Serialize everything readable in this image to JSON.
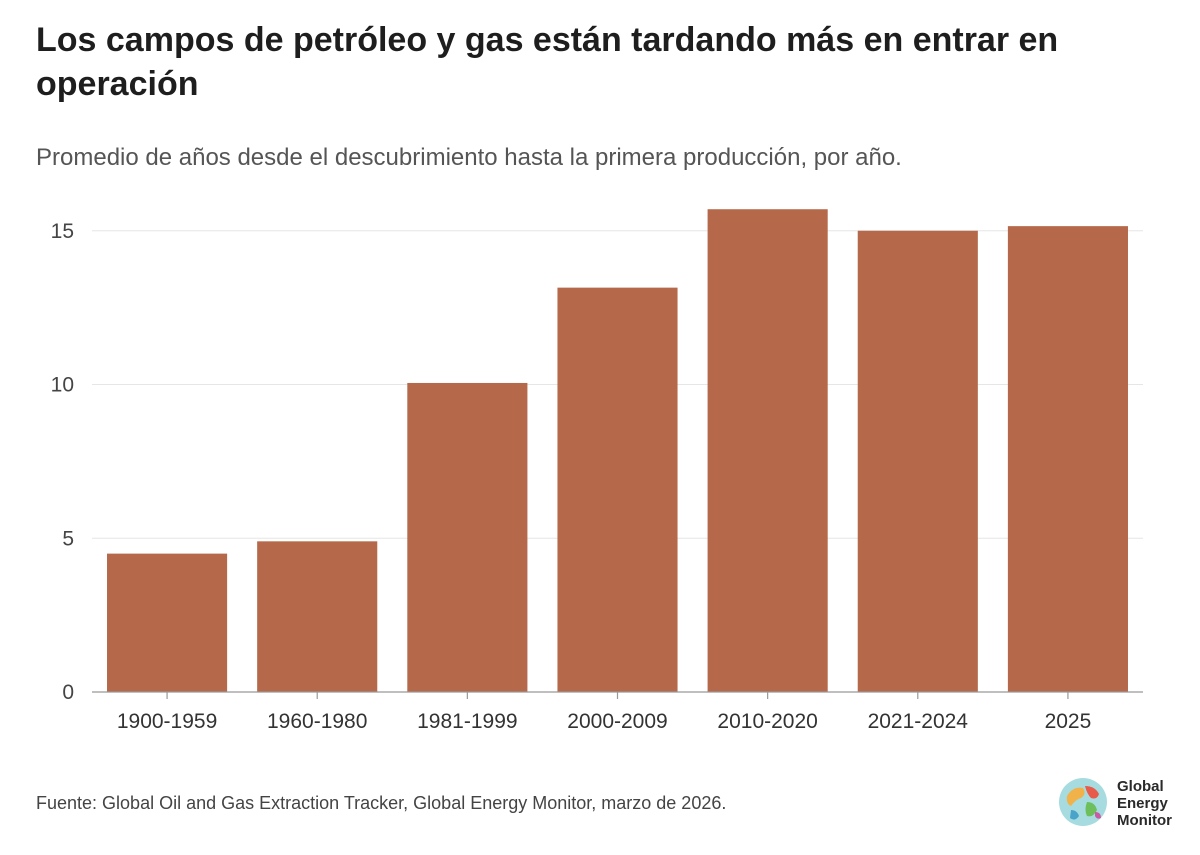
{
  "title": "Los campos de petróleo y gas están tardando más en entrar en operación",
  "subtitle": "Promedio de años desde el descubrimiento hasta la primera producción, por año.",
  "source": "Fuente: Global Oil and Gas Extraction Tracker, Global Energy Monitor, marzo de 2026.",
  "logo": {
    "line1": "Global",
    "line2": "Energy",
    "line3": "Monitor",
    "icon": "globe-icon"
  },
  "chart_data": {
    "type": "bar",
    "categories": [
      "1900-1959",
      "1960-1980",
      "1981-1999",
      "2000-2009",
      "2010-2020",
      "2021-2024",
      "2025"
    ],
    "values": [
      4.5,
      4.9,
      10.05,
      13.15,
      15.7,
      15.0,
      15.15
    ],
    "title": "Los campos de petróleo y gas están tardando más en entrar en operación",
    "xlabel": "",
    "ylabel": "",
    "ylim": [
      0,
      16
    ],
    "yticks": [
      0,
      5,
      10,
      15
    ],
    "grid": true,
    "bar_color": "#b5694a"
  }
}
